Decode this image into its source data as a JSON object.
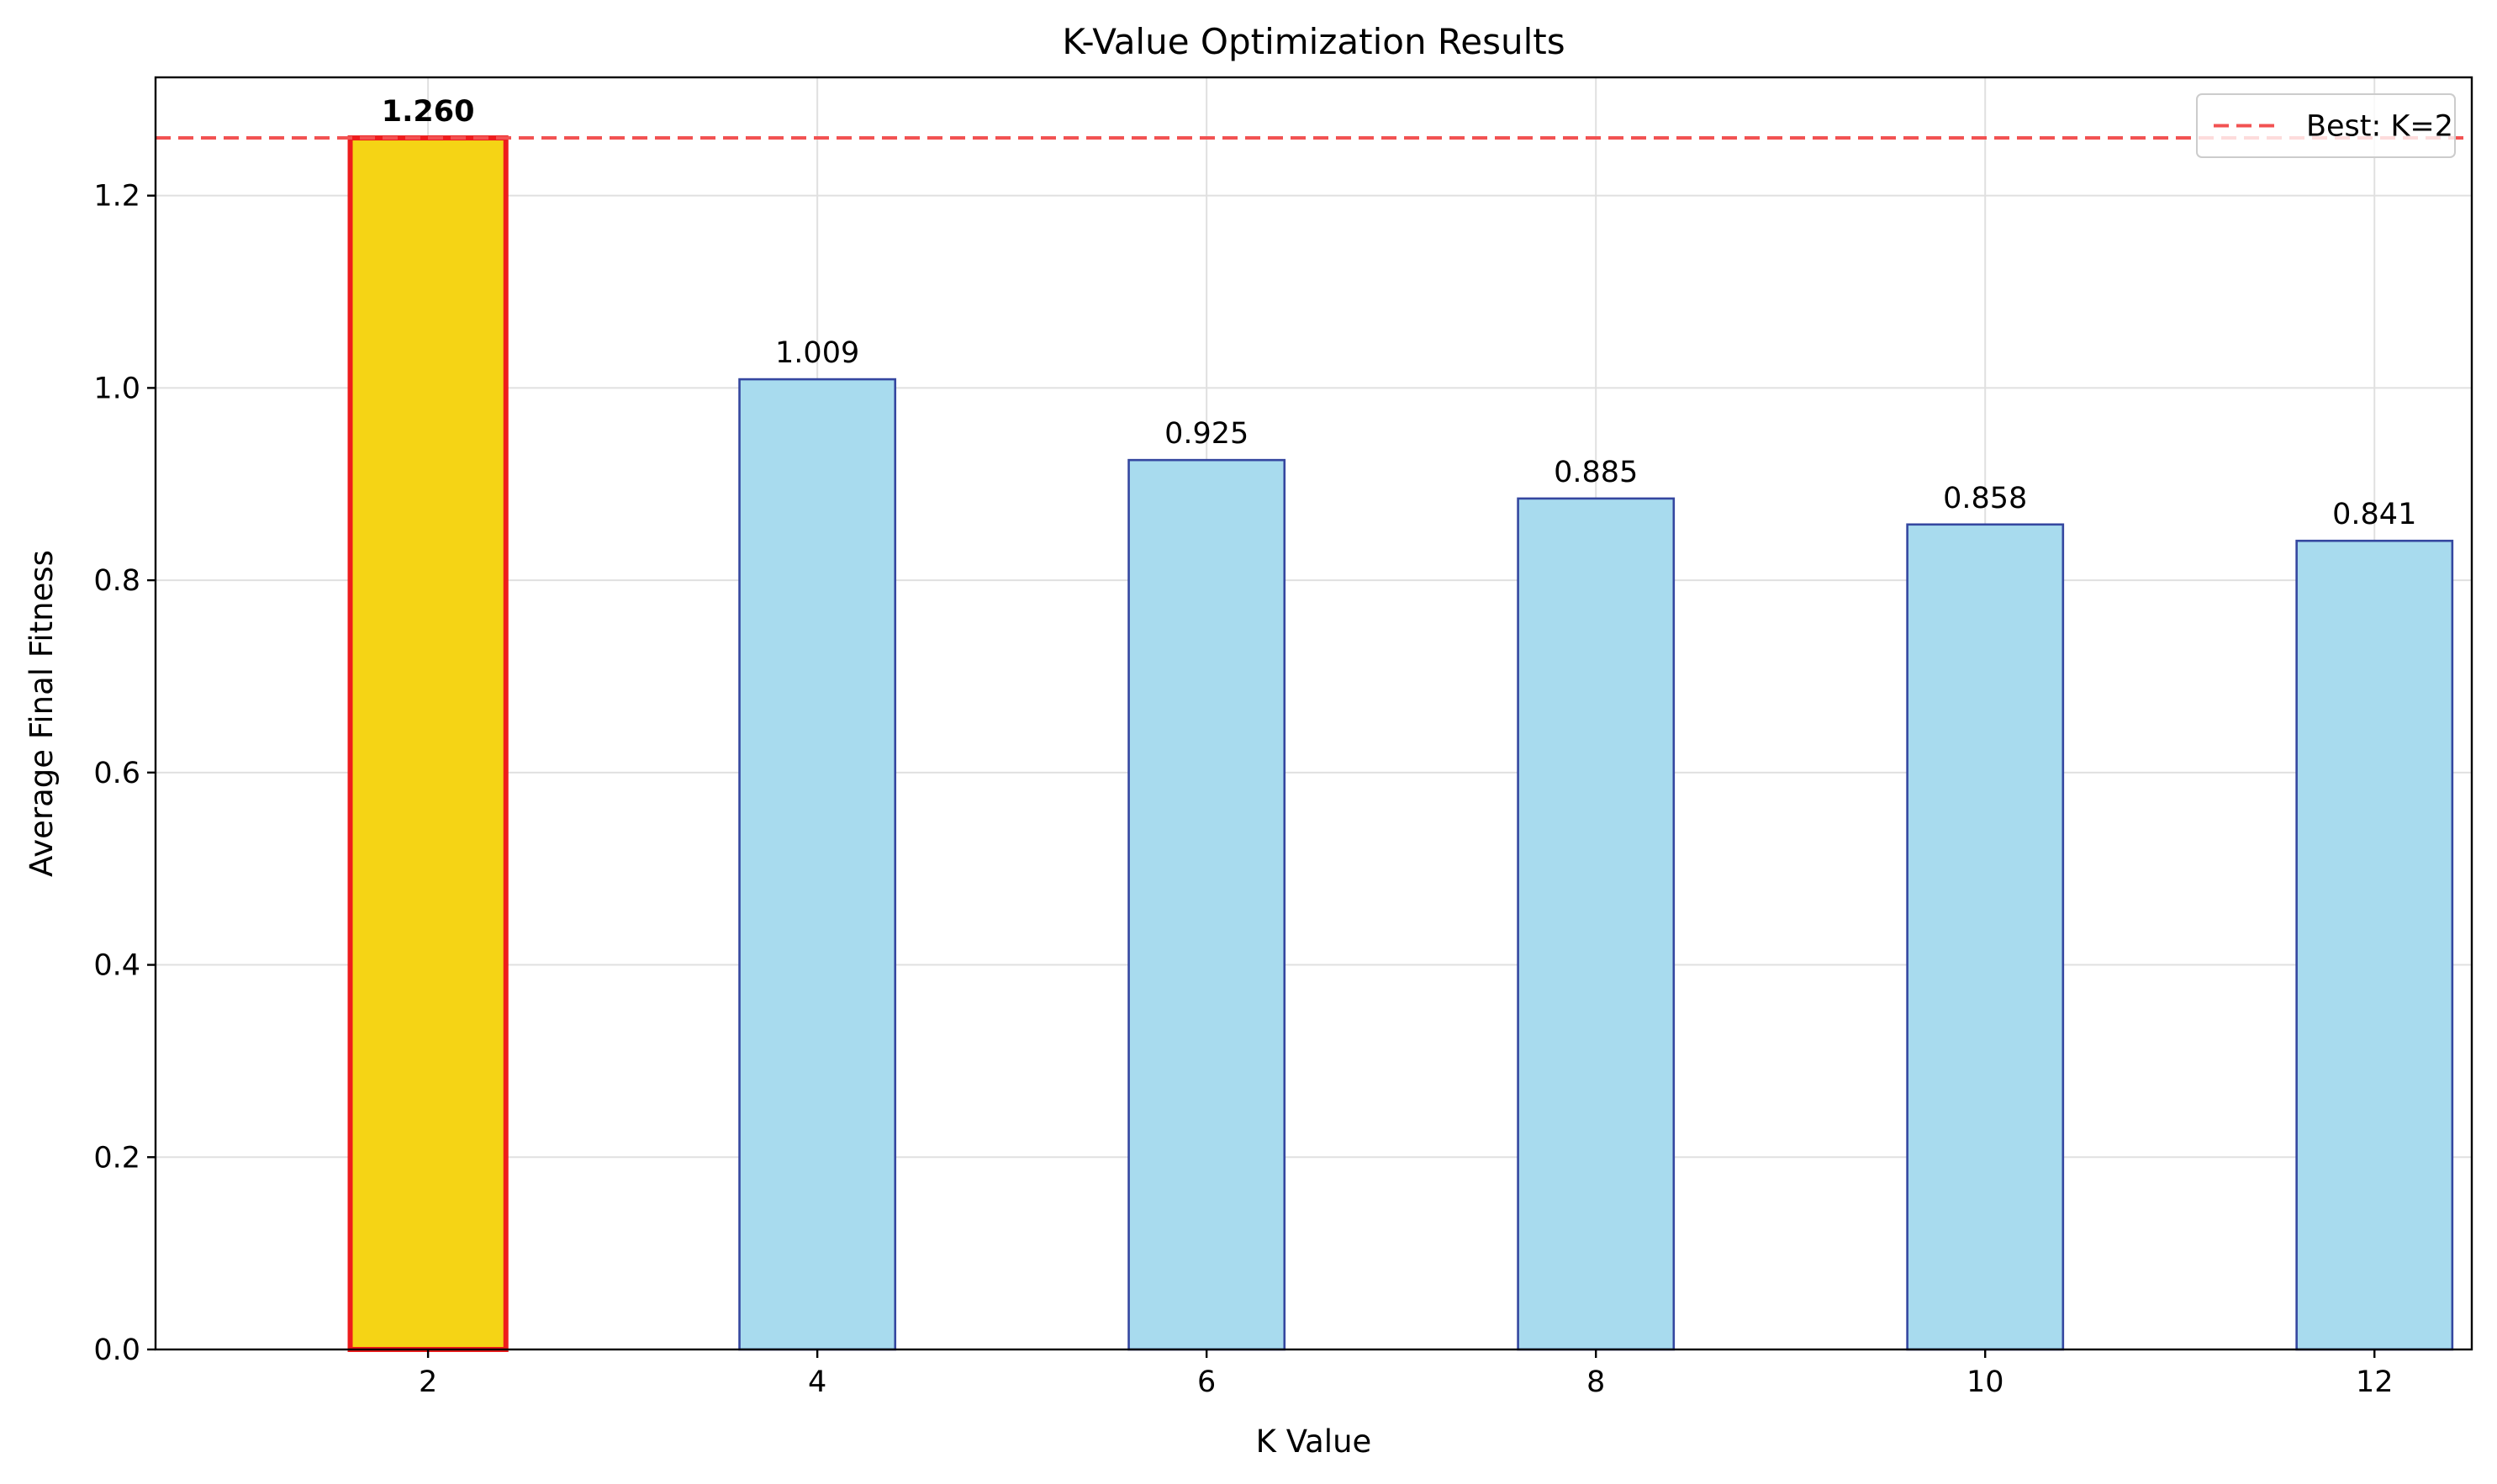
{
  "chart_data": {
    "type": "bar",
    "title": "K-Value Optimization Results",
    "xlabel": "K Value",
    "ylabel": "Average Final Fitness",
    "x": [
      2,
      4,
      6,
      8,
      10,
      12
    ],
    "categories": [
      "2",
      "4",
      "6",
      "8",
      "10",
      "12"
    ],
    "values": [
      1.26,
      1.009,
      0.925,
      0.885,
      0.858,
      0.841
    ],
    "value_labels": [
      "1.260",
      "1.009",
      "0.925",
      "0.885",
      "0.858",
      "0.841"
    ],
    "best_index": 0,
    "bar_width": 0.8,
    "xlim": [
      0.6,
      12.5
    ],
    "ylim": [
      0,
      1.323
    ],
    "yticks": [
      0.0,
      0.2,
      0.4,
      0.6,
      0.8,
      1.0,
      1.2
    ],
    "ytick_labels": [
      "0.0",
      "0.2",
      "0.4",
      "0.6",
      "0.8",
      "1.0",
      "1.2"
    ],
    "grid": true,
    "reference_line": {
      "value": 1.26,
      "label": "Best: K=2",
      "style": "dashed"
    },
    "legend": {
      "position": "top-right",
      "entries": [
        "Best: K=2"
      ]
    },
    "colors": {
      "bar_fill": "#a8dbee",
      "bar_edge": "#3547a0",
      "best_fill": "#f5d415",
      "best_edge": "#ee1c1c",
      "reference_line": "#f25252",
      "grid": "#e0e0e0",
      "axis": "#000000"
    }
  }
}
